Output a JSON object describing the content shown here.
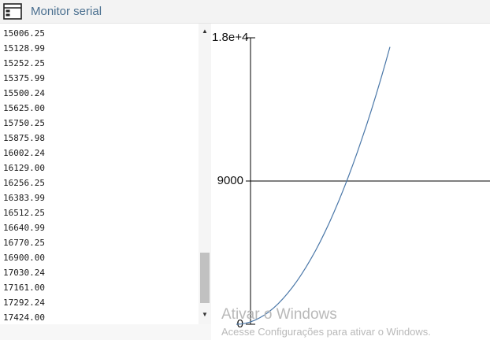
{
  "window": {
    "title": "Monitor serial",
    "icon": "window-icon"
  },
  "serial_lines": [
    "15006.25",
    "15128.99",
    "15252.25",
    "15375.99",
    "15500.24",
    "15625.00",
    "15750.25",
    "15875.98",
    "16002.24",
    "16129.00",
    "16256.25",
    "16383.99",
    "16512.25",
    "16640.99",
    "16770.25",
    "16900.00",
    "17030.24",
    "17161.00",
    "17292.24",
    "17424.00"
  ],
  "scrollbar": {
    "up_glyph": "▲",
    "down_glyph": "▼",
    "thumb_position_fraction": 0.85
  },
  "chart_data": {
    "type": "line",
    "y_ticks": [
      "1.8e+4",
      "9000",
      "0"
    ],
    "ylim": [
      0,
      18000
    ],
    "x": [
      0,
      4,
      8,
      12,
      16,
      20,
      24,
      28,
      32,
      36,
      40,
      44,
      48,
      52,
      56,
      60,
      64,
      68,
      72,
      76,
      80,
      84,
      88,
      92,
      96,
      100,
      104,
      108,
      112,
      116,
      120,
      124,
      128,
      132
    ],
    "series": [
      {
        "values": [
          0,
          16,
          64,
          144,
          256,
          400,
          576,
          784,
          1024,
          1296,
          1600,
          1936,
          2304,
          2704,
          3136,
          3600,
          4096,
          4624,
          5184,
          5776,
          6400,
          7056,
          7744,
          8464,
          9216,
          10000,
          10816,
          11664,
          12544,
          13456,
          14400,
          15376,
          16384,
          17424
        ]
      }
    ],
    "grid": false,
    "line_color": "#4a77a8",
    "axis_color": "#000000"
  },
  "watermark": {
    "line1": "Ativar o Windows",
    "line2": "Acesse Configurações para ativar o Windows."
  }
}
